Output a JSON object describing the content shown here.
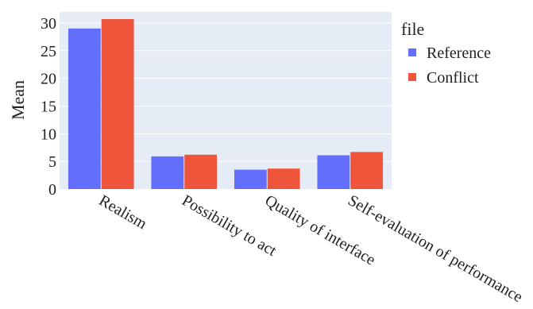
{
  "chart_data": {
    "type": "bar",
    "categories": [
      "Realism",
      "Possibility to act",
      "Quality of interface",
      "Self-evaluation of performance"
    ],
    "series": [
      {
        "name": "Reference",
        "values": [
          29.0,
          5.9,
          3.5,
          6.1
        ],
        "color": "#636efa"
      },
      {
        "name": "Conflict",
        "values": [
          30.7,
          6.2,
          3.7,
          6.7
        ],
        "color": "#ef553b"
      }
    ],
    "ylabel": "Mean",
    "xlabel": "",
    "ylim": [
      0,
      32
    ],
    "yticks": [
      0,
      5,
      10,
      15,
      20,
      25,
      30
    ],
    "grid": true,
    "legend": {
      "title": "file",
      "placement": "top-right"
    },
    "plot_background": "#e5ecf6"
  }
}
